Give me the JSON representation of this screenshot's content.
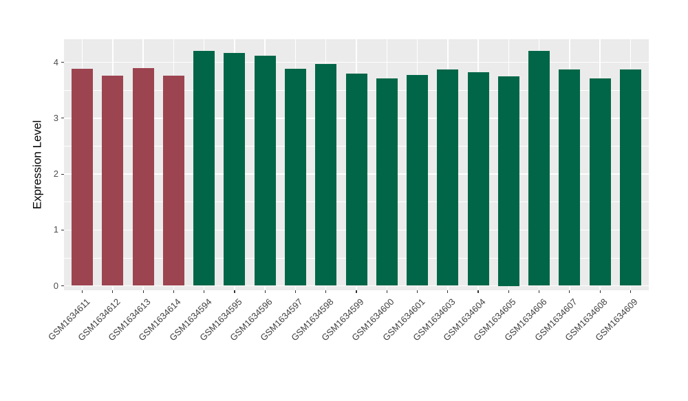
{
  "chart_data": {
    "type": "bar",
    "title": "",
    "xlabel": "",
    "ylabel": "Expression Level",
    "categories": [
      "GSM1634611",
      "GSM1634612",
      "GSM1634613",
      "GSM1634614",
      "GSM1634594",
      "GSM1634595",
      "GSM1634596",
      "GSM1634597",
      "GSM1634598",
      "GSM1634599",
      "GSM1634600",
      "GSM1634601",
      "GSM1634603",
      "GSM1634604",
      "GSM1634605",
      "GSM1634606",
      "GSM1634607",
      "GSM1634608",
      "GSM1634609"
    ],
    "values": [
      3.88,
      3.76,
      3.9,
      3.76,
      4.21,
      4.17,
      4.12,
      3.88,
      3.97,
      3.8,
      3.71,
      3.78,
      3.87,
      3.82,
      3.75,
      4.21,
      3.87,
      3.71,
      3.87
    ],
    "bar_colors": [
      "#9C4450",
      "#9C4450",
      "#9C4450",
      "#9C4450",
      "#006647",
      "#006647",
      "#006647",
      "#006647",
      "#006647",
      "#006647",
      "#006647",
      "#006647",
      "#006647",
      "#006647",
      "#006647",
      "#006647",
      "#006647",
      "#006647",
      "#006647"
    ],
    "groups": [
      {
        "name": "group-red",
        "color": "#9C4450",
        "count": 4
      },
      {
        "name": "group-green",
        "color": "#006647",
        "count": 15
      }
    ],
    "yticks": [
      "0",
      "1",
      "2",
      "3",
      "4"
    ],
    "ytick_values": [
      0,
      1,
      2,
      3,
      4
    ],
    "minor_step": 0.5,
    "ylim": [
      0,
      4.42
    ],
    "grid": "on",
    "legend": "none",
    "panel_background": "#EBEBEB",
    "grid_color": "#FFFFFF",
    "axis_text_color": "#4D4D4D",
    "tick_color": "#333333"
  }
}
